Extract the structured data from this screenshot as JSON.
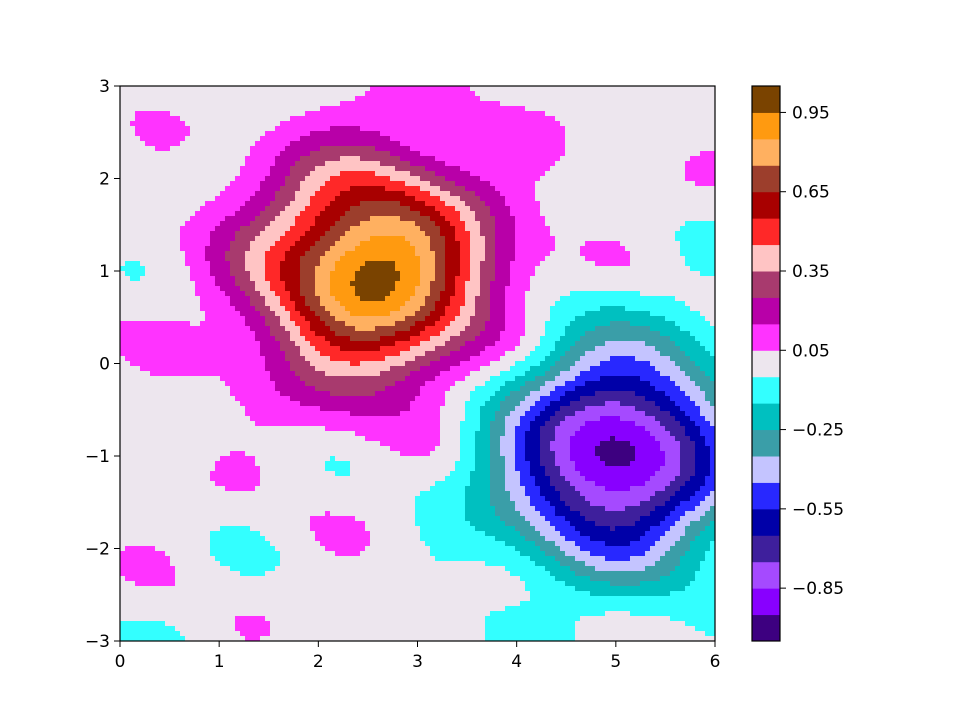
{
  "chart_data": {
    "type": "heatmap",
    "subtype": "filled-contour",
    "title": "",
    "xlabel": "",
    "ylabel": "",
    "xlim": [
      0,
      6
    ],
    "ylim": [
      -3,
      3
    ],
    "x_ticks": [
      "0",
      "1",
      "2",
      "3",
      "4",
      "5",
      "6"
    ],
    "y_ticks": [
      "3",
      "2",
      "1",
      "0",
      "−1",
      "−2",
      "−3"
    ],
    "peaks": [
      {
        "x": 2.55,
        "y": 1.0,
        "value": 1.0
      },
      {
        "x": 5.0,
        "y": -1.0,
        "value": -1.0
      }
    ],
    "colorbar": {
      "range": [
        -1.05,
        1.05
      ],
      "levels": [
        -1.05,
        -0.95,
        -0.85,
        -0.75,
        -0.65,
        -0.55,
        -0.45,
        -0.35,
        -0.25,
        -0.15,
        -0.05,
        0.05,
        0.15,
        0.25,
        0.35,
        0.45,
        0.55,
        0.65,
        0.75,
        0.85,
        0.95,
        1.05
      ],
      "ticks": [
        -0.85,
        -0.55,
        -0.25,
        0.05,
        0.35,
        0.65,
        0.95
      ],
      "tick_labels": [
        "−0.85",
        "−0.55",
        "−0.25",
        "0.05",
        "0.35",
        "0.65",
        "0.95"
      ],
      "colors": [
        "#3d0080",
        "#8800ff",
        "#a54aff",
        "#3e1f9c",
        "#0000a8",
        "#2828ff",
        "#c4c4ff",
        "#3a9ea8",
        "#00c0c0",
        "#33ffff",
        "#ede6ee",
        "#ff33ff",
        "#b800a8",
        "#a83a6e",
        "#ffc4c4",
        "#ff2828",
        "#a80000",
        "#9c3e2c",
        "#ffb060",
        "#ff9a10",
        "#7a4300"
      ]
    }
  }
}
